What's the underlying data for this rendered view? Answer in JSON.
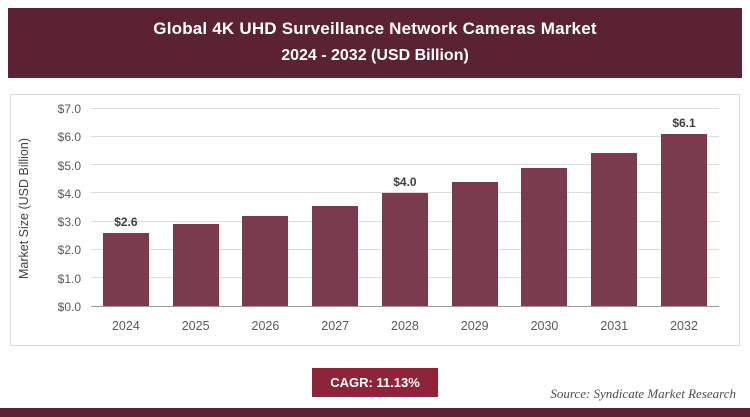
{
  "header": {
    "title_line1": "Global 4K UHD Surveillance Network Cameras Market",
    "title_line2": "2024 - 2032 (USD Billion)"
  },
  "chart_data": {
    "type": "bar",
    "title": "Global 4K UHD Surveillance Network Cameras Market 2024 - 2032 (USD Billion)",
    "xlabel": "",
    "ylabel": "Market Size (USD Billion)",
    "ylim": [
      0,
      7
    ],
    "ytick_labels": [
      "$0.0",
      "$1.0",
      "$2.0",
      "$3.0",
      "$4.0",
      "$5.0",
      "$6.0",
      "$7.0"
    ],
    "grid": true,
    "legend": false,
    "bar_color": "#7a3b4d",
    "categories": [
      "2024",
      "2025",
      "2026",
      "2027",
      "2028",
      "2029",
      "2030",
      "2031",
      "2032"
    ],
    "values": [
      2.6,
      2.9,
      3.2,
      3.55,
      4.0,
      4.4,
      4.9,
      5.45,
      6.1
    ],
    "points": [
      {
        "year": "2024",
        "value": 2.6,
        "label": "$2.6"
      },
      {
        "year": "2025",
        "value": 2.9,
        "label": ""
      },
      {
        "year": "2026",
        "value": 3.2,
        "label": ""
      },
      {
        "year": "2027",
        "value": 3.55,
        "label": ""
      },
      {
        "year": "2028",
        "value": 4.0,
        "label": "$4.0"
      },
      {
        "year": "2029",
        "value": 4.4,
        "label": ""
      },
      {
        "year": "2030",
        "value": 4.9,
        "label": ""
      },
      {
        "year": "2031",
        "value": 5.45,
        "label": ""
      },
      {
        "year": "2032",
        "value": 6.1,
        "label": "$6.1"
      }
    ]
  },
  "footer": {
    "cagr_label": "CAGR: 11.13%",
    "source": "Source: Syndicate Market Research"
  },
  "colors": {
    "header_bg": "#5b2232",
    "bar": "#7a3b4d",
    "badge_bg": "#8e2437",
    "accent_bar": "#5b2232"
  }
}
